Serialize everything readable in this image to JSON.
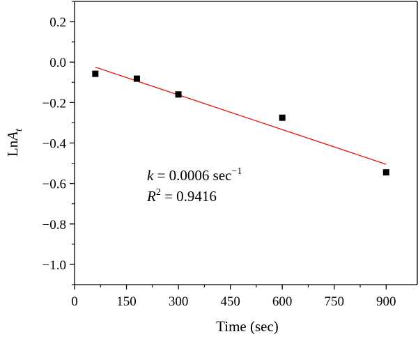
{
  "chart_data": {
    "type": "scatter",
    "xlabel": "Time (sec)",
    "ylabel": {
      "base": "Ln",
      "var": "A",
      "sub": "t"
    },
    "xlim": [
      0,
      990
    ],
    "ylim": [
      -1.1,
      0.3
    ],
    "x_ticks": [
      0,
      150,
      300,
      450,
      600,
      750,
      900
    ],
    "x_tick_labels": [
      "0",
      "150",
      "300",
      "450",
      "600",
      "750",
      "900"
    ],
    "y_ticks": [
      0.2,
      0.0,
      -0.2,
      -0.4,
      -0.6,
      -0.8,
      -1.0
    ],
    "y_tick_labels": [
      "0.2",
      "0.0",
      "−0.2",
      "−0.4",
      "−0.6",
      "−0.8",
      "−1.0"
    ],
    "points": [
      {
        "x": 60,
        "y": -0.058
      },
      {
        "x": 180,
        "y": -0.082
      },
      {
        "x": 300,
        "y": -0.16
      },
      {
        "x": 600,
        "y": -0.275
      },
      {
        "x": 900,
        "y": -0.545
      }
    ],
    "fit_line": {
      "x": [
        60,
        900
      ],
      "y": [
        -0.025,
        -0.505
      ],
      "color": "#e41a1c"
    },
    "marker_color": "#000000",
    "grid": false,
    "annotations": {
      "k_symbol": "k",
      "k_text": " = 0.0006 sec",
      "k_sup": "−1",
      "r_symbol": "R",
      "r_sup": "2",
      "r_text": " = 0.9416"
    }
  }
}
